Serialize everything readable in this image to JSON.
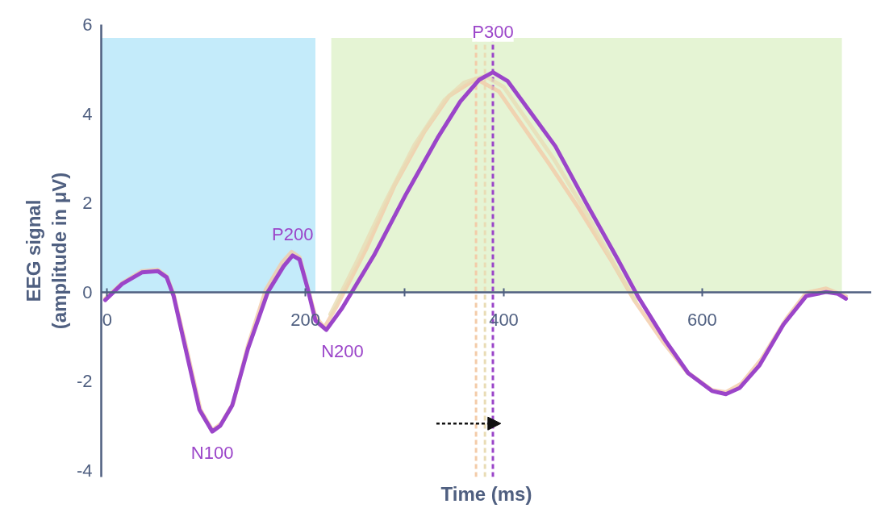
{
  "chart_data": {
    "type": "line",
    "xlabel": "Time (ms)",
    "ylabel": "EEG signal\n(amplitude in μV)",
    "xlim": [
      -6,
      771
    ],
    "ylim": [
      -4.15,
      6
    ],
    "xticks": [
      0,
      {
        "value": 200,
        "label": "200"
      },
      {
        "value": 300,
        "label": null
      },
      400,
      600
    ],
    "yticks": [
      -4,
      -2,
      0,
      2,
      4,
      6
    ],
    "grid": false,
    "marker": "none",
    "line_style": "solid",
    "series": [
      {
        "color": "#f3cba8",
        "x": [
          -2,
          15,
          35,
          51,
          60,
          67,
          80,
          94,
          106,
          115,
          127,
          142,
          160,
          176,
          186,
          194,
          201,
          210,
          219,
          232,
          262,
          290,
          320,
          345,
          372,
          395,
          420,
          445,
          475,
          510,
          532,
          560,
          585,
          610,
          624,
          640,
          660,
          685,
          705,
          725,
          745
        ],
        "values": [
          -0.15,
          0.2,
          0.47,
          0.5,
          0.35,
          -0.05,
          -1.27,
          -2.64,
          -3.1,
          -2.95,
          -2.5,
          -1.2,
          0.05,
          0.65,
          0.9,
          0.78,
          0.2,
          -0.55,
          -0.8,
          -0.3,
          1.0,
          2.4,
          3.6,
          4.4,
          4.78,
          4.5,
          3.7,
          2.9,
          1.9,
          0.65,
          -0.2,
          -1.1,
          -1.8,
          -2.2,
          -2.25,
          -2.05,
          -1.5,
          -0.6,
          -0.02,
          0.08,
          -0.1
        ]
      },
      {
        "color": "#e9dcb5",
        "x": [
          225,
          250,
          280,
          310,
          340,
          360,
          381,
          400,
          425,
          450,
          480,
          512,
          533
        ],
        "values": [
          -0.5,
          0.6,
          2.0,
          3.3,
          4.3,
          4.7,
          4.85,
          4.6,
          3.8,
          3.0,
          1.9,
          0.6,
          -0.2
        ]
      },
      {
        "color": "#9b45c9",
        "x": [
          -2,
          15,
          35,
          51,
          60,
          67,
          79,
          93,
          106,
          114,
          126,
          142,
          162,
          178,
          187,
          194,
          202,
          210,
          221,
          237,
          269,
          301,
          333,
          356,
          375,
          389,
          404,
          428,
          452,
          483,
          515,
          535,
          563,
          586,
          610,
          624,
          638,
          658,
          682,
          705,
          725,
          737,
          745
        ],
        "values": [
          -0.18,
          0.18,
          0.44,
          0.47,
          0.33,
          -0.09,
          -1.27,
          -2.64,
          -3.13,
          -3.0,
          -2.55,
          -1.27,
          0,
          0.58,
          0.82,
          0.73,
          0.09,
          -0.64,
          -0.85,
          -0.36,
          0.82,
          2.18,
          3.45,
          4.27,
          4.76,
          4.93,
          4.73,
          4.0,
          3.27,
          2.0,
          0.73,
          -0.09,
          -1.09,
          -1.82,
          -2.22,
          -2.29,
          -2.15,
          -1.64,
          -0.73,
          -0.09,
          0,
          -0.04,
          -0.15
        ]
      }
    ],
    "ref_lines": [
      {
        "axis": "x",
        "value": 372,
        "color": "#f3cba8",
        "line_style": "dashed"
      },
      {
        "axis": "x",
        "value": 381,
        "color": "#e9dcb5",
        "line_style": "dashed"
      },
      {
        "axis": "x",
        "value": 389,
        "color": "#9b45c9",
        "line_style": "dashed"
      }
    ],
    "bands": [
      {
        "axis": "x",
        "from": -6,
        "to": 210,
        "color": "#7dd3f5"
      },
      {
        "axis": "x",
        "from": 226,
        "to": 741,
        "color": "#c5e6a0"
      }
    ],
    "annotations": [
      {
        "text": "P300",
        "x": 389,
        "y": 4.93
      },
      {
        "text": "P200",
        "x": 187,
        "y": 0.82
      },
      {
        "text": "N100",
        "x": 106,
        "y": -3.13
      },
      {
        "text": "N200",
        "x": 221,
        "y": -0.85
      }
    ]
  }
}
